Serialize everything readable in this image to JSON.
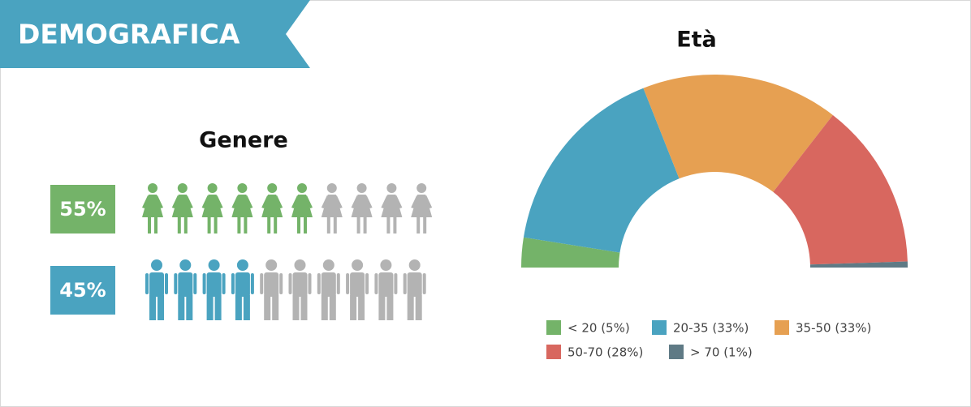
{
  "header": {
    "title": "DEMOGRAFICA"
  },
  "chart_data": [
    {
      "type": "pictogram",
      "title": "Genere",
      "values": [
        55,
        45
      ],
      "value_labels": [
        "55%",
        "45%"
      ],
      "icons": [
        "female",
        "male"
      ],
      "colors": [
        "#74b369",
        "#4aa3c0"
      ],
      "icon_total": 10,
      "icon_filled": [
        6,
        4
      ],
      "empty_color": "#b3b3b3"
    },
    {
      "type": "semi-donut",
      "title": "Età",
      "categories": [
        "< 20 (5%)",
        "20-35 (33%)",
        "35-50 (33%)",
        "50-70 (28%)",
        "> 70 (1%)"
      ],
      "values": [
        5,
        33,
        33,
        28,
        1
      ],
      "colors": [
        "#74b369",
        "#4aa3c0",
        "#e6a052",
        "#d8675f",
        "#5f7a85"
      ]
    }
  ]
}
